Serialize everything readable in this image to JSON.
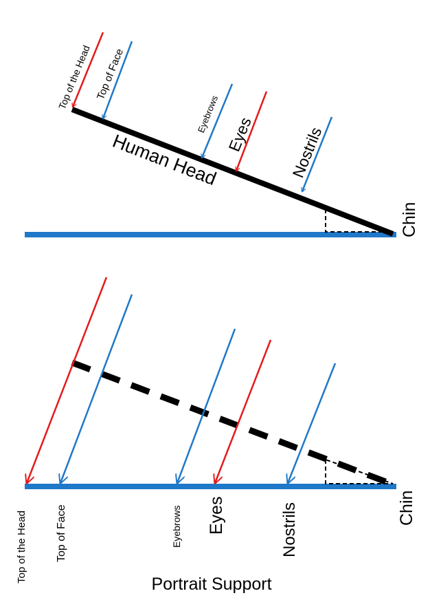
{
  "colors": {
    "red": "#e31a1c",
    "blue": "#1f78c8",
    "support": "#1f78c8",
    "head": "#000000"
  },
  "top_panel": {
    "head_label": "Human Head",
    "chin_label": "Chin",
    "arrows": [
      {
        "label": "Top of the Head",
        "color": "red"
      },
      {
        "label": "Top of Face",
        "color": "blue"
      },
      {
        "label": "Eyebrows",
        "color": "blue"
      },
      {
        "label": "Eyes",
        "color": "red"
      },
      {
        "label": "Nostrils",
        "color": "blue"
      }
    ]
  },
  "bottom_panel": {
    "chin_label": "Chin",
    "support_label": "Portrait Support",
    "marks": [
      {
        "label": "Top of the Head",
        "color": "red"
      },
      {
        "label": "Top of Face",
        "color": "blue"
      },
      {
        "label": "Eyebrows",
        "color": "blue"
      },
      {
        "label": "Eyes",
        "color": "red"
      },
      {
        "label": "Nostrils",
        "color": "blue"
      }
    ]
  }
}
